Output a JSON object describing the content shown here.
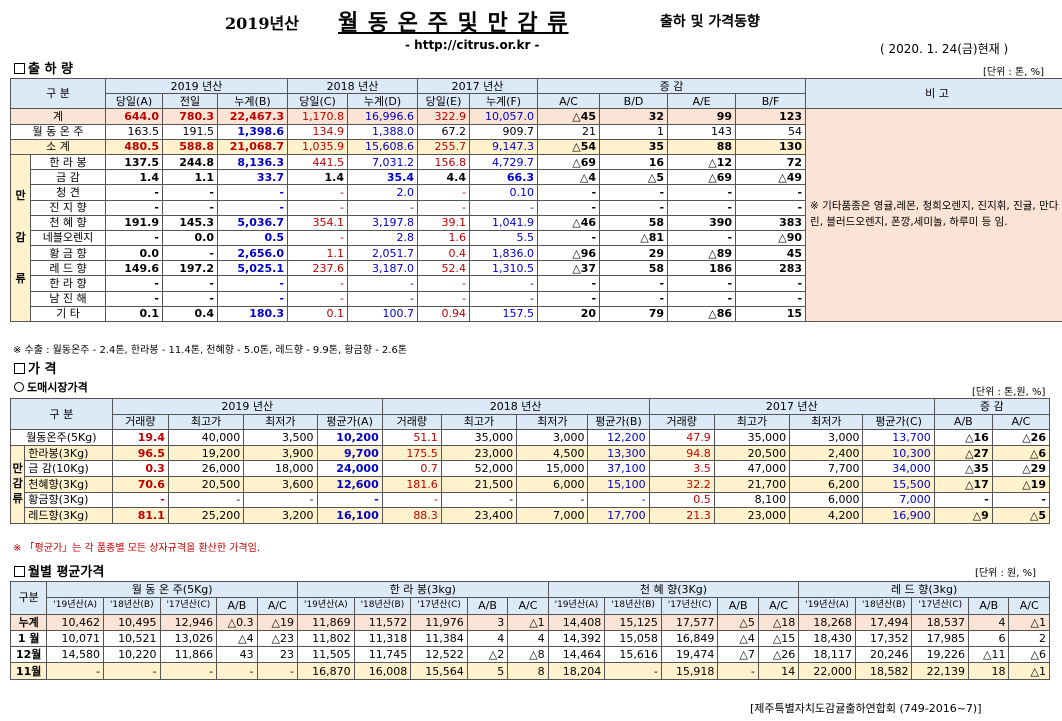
{
  "header": {
    "title_pre": "2019년산",
    "title_main": "월 동 온 주 및 만 감 류",
    "title_post": "출하 및 가격동향",
    "url": "- http://citrus.or.kr -",
    "date": "( 2020. 1. 24(금)현재 )"
  },
  "s1": {
    "title": "출 하 량",
    "unit": "[단위 : 톤, %]",
    "h_div": "구  분",
    "h_y19": "2019 년산",
    "h_y18": "2018 년산",
    "h_y17": "2017 년산",
    "h_inc": "증  감",
    "h_note": "비 고",
    "sub": [
      "당일(A)",
      "전일",
      "누계(B)",
      "당일(C)",
      "누계(D)",
      "당일(E)",
      "누계(F)",
      "A/C",
      "B/D",
      "A/E",
      "B/F"
    ],
    "group": [
      "만",
      "감",
      "류"
    ],
    "note": "※ 기타품종은 영귤,레몬, 청희오렌지, 진지휘, 진귤, 만다린, 블러드오렌지, 폰깡,세미놀, 하루미 등 임.",
    "rows": [
      {
        "n": "계",
        "v": [
          "644.0",
          "780.3",
          "22,467.3",
          "1,170.8",
          "16,996.6",
          "322.9",
          "10,057.0",
          "△45",
          "32",
          "99",
          "123"
        ]
      },
      {
        "n": "월 동 온 주",
        "v": [
          "163.5",
          "191.5",
          "1,398.6",
          "134.9",
          "1,388.0",
          "67.2",
          "909.7",
          "21",
          "1",
          "143",
          "54"
        ]
      },
      {
        "n": "소   계",
        "v": [
          "480.5",
          "588.8",
          "21,068.7",
          "1,035.9",
          "15,608.6",
          "255.7",
          "9,147.3",
          "△54",
          "35",
          "88",
          "130"
        ]
      },
      {
        "n": "한 라 봉",
        "v": [
          "137.5",
          "244.8",
          "8,136.3",
          "441.5",
          "7,031.2",
          "156.8",
          "4,729.7",
          "△69",
          "16",
          "△12",
          "72"
        ]
      },
      {
        "n": "금  감",
        "v": [
          "1.4",
          "1.1",
          "33.7",
          "1.4",
          "35.4",
          "4.4",
          "66.3",
          "△4",
          "△5",
          "△69",
          "△49"
        ]
      },
      {
        "n": "청  견",
        "v": [
          "-",
          "-",
          "-",
          "-",
          "2.0",
          "-",
          "0.10",
          "-",
          "-",
          "-",
          "-"
        ]
      },
      {
        "n": "진 지 향",
        "v": [
          "-",
          "-",
          "-",
          "-",
          "-",
          "-",
          "-",
          "-",
          "-",
          "-",
          "-"
        ]
      },
      {
        "n": "천 혜 향",
        "v": [
          "191.9",
          "145.3",
          "5,036.7",
          "354.1",
          "3,197.8",
          "39.1",
          "1,041.9",
          "△46",
          "58",
          "390",
          "383"
        ]
      },
      {
        "n": "네블오렌지",
        "v": [
          "-",
          "0.0",
          "0.5",
          "-",
          "2.8",
          "1.6",
          "5.5",
          "-",
          "△81",
          "-",
          "△90"
        ]
      },
      {
        "n": "황 금 향",
        "v": [
          "0.0",
          "-",
          "2,656.0",
          "1.1",
          "2,051.7",
          "0.4",
          "1,836.0",
          "△96",
          "29",
          "△89",
          "45"
        ]
      },
      {
        "n": "레 드 향",
        "v": [
          "149.6",
          "197.2",
          "5,025.1",
          "237.6",
          "3,187.0",
          "52.4",
          "1,310.5",
          "△37",
          "58",
          "186",
          "283"
        ]
      },
      {
        "n": "한 라 향",
        "v": [
          "-",
          "-",
          "-",
          "-",
          "-",
          "-",
          "-",
          "-",
          "-",
          "-",
          "-"
        ]
      },
      {
        "n": "남 진 해",
        "v": [
          "-",
          "-",
          "-",
          "-",
          "-",
          "-",
          "-",
          "-",
          "-",
          "-",
          "-"
        ]
      },
      {
        "n": "기   타",
        "v": [
          "0.1",
          "0.4",
          "180.3",
          "0.1",
          "100.7",
          "0.94",
          "157.5",
          "20",
          "79",
          "△86",
          "15"
        ]
      }
    ],
    "export": "※ 수출 : 월동온주 - 2.4톤, 한라봉 - 11.4톤, 천혜향 - 5.0톤, 레드향 - 9.9톤, 황금향 - 2.6톤"
  },
  "s2": {
    "title": "가   격",
    "sub_title": "도매시장가격",
    "unit": "[단위 : 톤,원, %]",
    "h_div": "구  분",
    "h_y19": "2019 년산",
    "h_y18": "2018 년산",
    "h_y17": "2017 년산",
    "h_inc": "증  감",
    "sub": [
      "거래량",
      "최고가",
      "최저가",
      "평균가(A)",
      "거래량",
      "최고가",
      "최저가",
      "평균가(B)",
      "거래량",
      "최고가",
      "최저가",
      "평균가(C)",
      "A/B",
      "A/C"
    ],
    "group": [
      "만",
      "감",
      "류"
    ],
    "rows": [
      {
        "n": "월동온주(5Kg)",
        "v": [
          "19.4",
          "40,000",
          "3,500",
          "10,200",
          "51.1",
          "35,000",
          "3,000",
          "12,200",
          "47.9",
          "35,000",
          "3,000",
          "13,700",
          "△16",
          "△26"
        ]
      },
      {
        "n": "한라봉(3Kg)",
        "v": [
          "96.5",
          "19,200",
          "3,900",
          "9,700",
          "175.5",
          "23,000",
          "4,500",
          "13,300",
          "94.8",
          "20,500",
          "2,400",
          "10,300",
          "△27",
          "△6"
        ]
      },
      {
        "n": "금 감(10Kg)",
        "v": [
          "0.3",
          "26,000",
          "18,000",
          "24,000",
          "0.7",
          "52,000",
          "15,000",
          "37,100",
          "3.5",
          "47,000",
          "7,700",
          "34,000",
          "△35",
          "△29"
        ]
      },
      {
        "n": "천혜향(3Kg)",
        "v": [
          "70.6",
          "20,500",
          "3,600",
          "12,600",
          "181.6",
          "21,500",
          "6,000",
          "15,100",
          "32.2",
          "21,700",
          "6,200",
          "15,500",
          "△17",
          "△19"
        ]
      },
      {
        "n": "황금향(3Kg)",
        "v": [
          "-",
          "-",
          "-",
          "-",
          "-",
          "-",
          "-",
          "-",
          "0.5",
          "8,100",
          "6,000",
          "7,000",
          "-",
          "-"
        ]
      },
      {
        "n": "레드향(3Kg)",
        "v": [
          "81.1",
          "25,200",
          "3,200",
          "16,100",
          "88.3",
          "23,400",
          "7,000",
          "17,700",
          "21.3",
          "23,000",
          "4,200",
          "16,900",
          "△9",
          "△5"
        ]
      }
    ],
    "note": "※ 「평균가」는 각 품종별 모든 상자규격을 환산한 가격임."
  },
  "s3": {
    "title": "월별 평균가격",
    "unit": "[단위 : 원, %]",
    "h_div": "구분",
    "h_groups": [
      "월 동 온 주(5Kg)",
      "한 라 봉(3kg)",
      "천 혜 향(3Kg)",
      "레 드 향(3kg)"
    ],
    "sub": [
      "'19년산(A)",
      "'18년산(B)",
      "'17년산(C)",
      "A/B",
      "A/C"
    ],
    "rows": [
      {
        "n": "누계",
        "v": [
          "10,462",
          "10,495",
          "12,946",
          "△0.3",
          "△19",
          "11,869",
          "11,572",
          "11,976",
          "3",
          "△1",
          "14,408",
          "15,125",
          "17,577",
          "△5",
          "△18",
          "18,268",
          "17,494",
          "18,537",
          "4",
          "△1"
        ]
      },
      {
        "n": "1 월",
        "v": [
          "10,071",
          "10,521",
          "13,026",
          "△4",
          "△23",
          "11,802",
          "11,318",
          "11,384",
          "4",
          "4",
          "14,392",
          "15,058",
          "16,849",
          "△4",
          "△15",
          "18,430",
          "17,352",
          "17,985",
          "6",
          "2"
        ]
      },
      {
        "n": "12월",
        "v": [
          "14,580",
          "10,220",
          "11,866",
          "43",
          "23",
          "11,505",
          "11,745",
          "12,522",
          "△2",
          "△8",
          "14,464",
          "15,616",
          "19,474",
          "△7",
          "△26",
          "18,117",
          "20,246",
          "19,226",
          "△11",
          "△6"
        ]
      },
      {
        "n": "11월",
        "v": [
          "-",
          "-",
          "-",
          "-",
          "-",
          "16,870",
          "16,008",
          "15,564",
          "5",
          "8",
          "18,204",
          "-",
          "15,918",
          "-",
          "14",
          "22,000",
          "18,582",
          "22,139",
          "18",
          "△1"
        ]
      }
    ],
    "footer": "[제주특별자치도감귤출하연합회 (749-2016~7)]"
  }
}
